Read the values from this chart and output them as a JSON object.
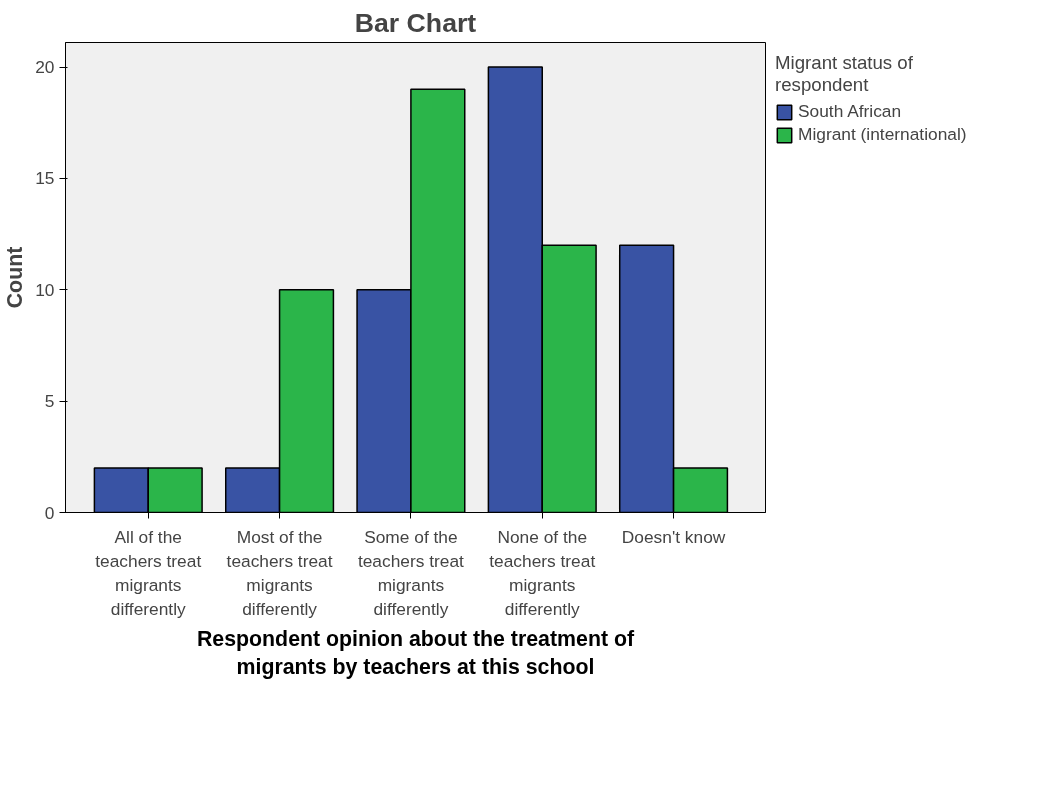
{
  "chart_data": {
    "type": "bar",
    "title": "Bar Chart",
    "xlabel": "Respondent opinion about the treatment of migrants by teachers at this school",
    "ylabel": "Count",
    "legend_title": "Migrant status of respondent",
    "categories": [
      "All of the teachers treat migrants differently",
      "Most of the teachers treat migrants differently",
      "Some of the teachers treat migrants differently",
      "None of the teachers treat migrants differently",
      "Doesn't know"
    ],
    "series": [
      {
        "name": "South African",
        "color": "#3953a4",
        "values": [
          2,
          2,
          10,
          20,
          12
        ]
      },
      {
        "name": "Migrant (international)",
        "color": "#2bb54a",
        "values": [
          2,
          10,
          19,
          12,
          2
        ]
      }
    ],
    "ylim": [
      0,
      21.1
    ],
    "yticks": [
      0,
      5,
      10,
      15,
      20
    ],
    "grid": false,
    "legend": "right"
  }
}
